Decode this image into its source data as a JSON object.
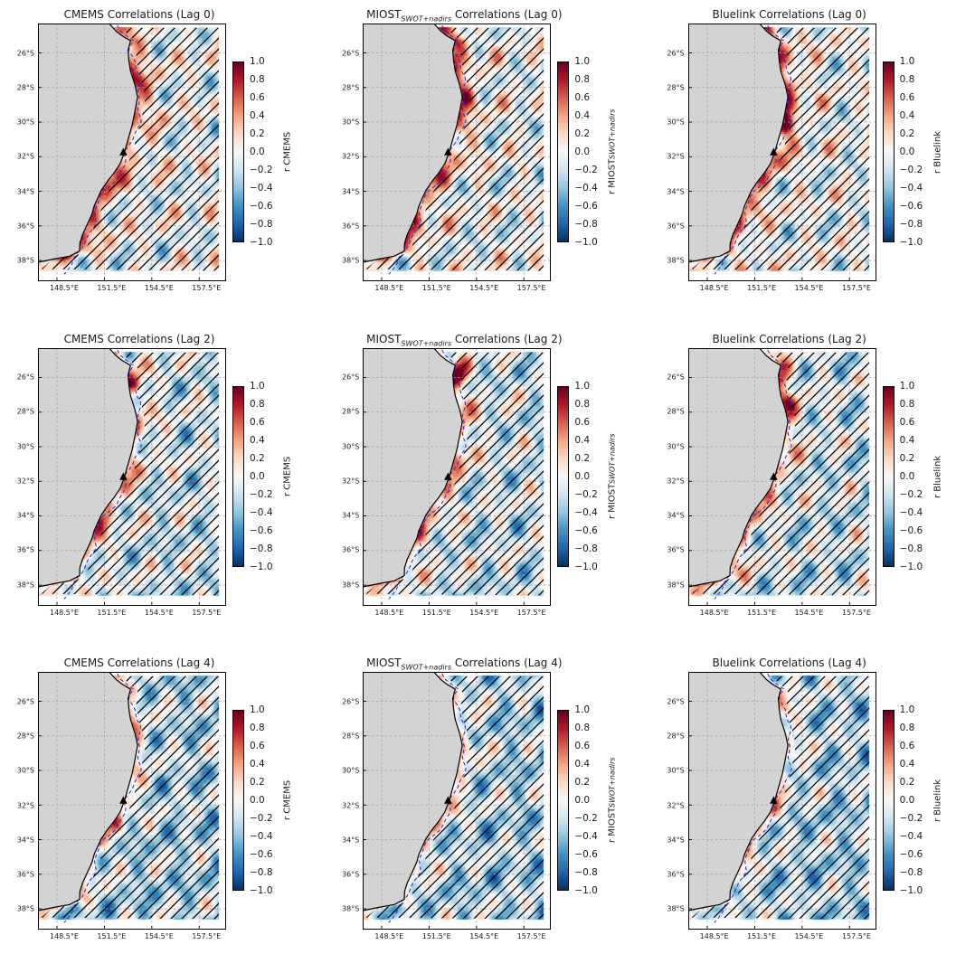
{
  "chart_data": {
    "type": "heatmap",
    "layout": "3x3 grid of geographic correlation maps; columns are products, rows are lags",
    "region": "East Australian coast / Tasman Sea",
    "column_products": [
      "CMEMS",
      "MIOST_SWOT+nadirs",
      "Bluelink"
    ],
    "row_lags": [
      0,
      2,
      4
    ],
    "lon_axis": {
      "range_deg_e": [
        147.3,
        159.2
      ],
      "tick_values": [
        148.5,
        151.5,
        154.5,
        157.5
      ],
      "tick_labels": [
        "148.5°E",
        "151.5°E",
        "154.5°E",
        "157.5°E"
      ]
    },
    "lat_axis": {
      "range_deg_s": [
        24.3,
        39.2
      ],
      "tick_values": [
        26,
        28,
        30,
        32,
        34,
        36,
        38
      ],
      "tick_labels": [
        "26°S",
        "28°S",
        "30°S",
        "32°S",
        "34°S",
        "36°S",
        "38°S"
      ]
    },
    "colorbar": {
      "vmin": -1.0,
      "vmax": 1.0,
      "tick_values": [
        1.0,
        0.8,
        0.6,
        0.4,
        0.2,
        0.0,
        -0.2,
        -0.4,
        -0.6,
        -0.8,
        -1.0
      ],
      "tick_labels": [
        "1.0",
        "0.8",
        "0.6",
        "0.4",
        "0.2",
        "0.0",
        "−0.2",
        "−0.4",
        "−0.6",
        "−0.8",
        "−1.0"
      ]
    },
    "colormap": {
      "name": "RdBu_r",
      "anchors": [
        {
          "value": -1.0,
          "color": "#053061"
        },
        {
          "value": -0.8,
          "color": "#2166ac"
        },
        {
          "value": -0.6,
          "color": "#4393c3"
        },
        {
          "value": -0.4,
          "color": "#92c5de"
        },
        {
          "value": -0.2,
          "color": "#d1e5f0"
        },
        {
          "value": 0.0,
          "color": "#f7f7f7"
        },
        {
          "value": 0.2,
          "color": "#fddbc7"
        },
        {
          "value": 0.4,
          "color": "#f4a582"
        },
        {
          "value": 0.6,
          "color": "#d6604d"
        },
        {
          "value": 0.8,
          "color": "#b2182b"
        },
        {
          "value": 1.0,
          "color": "#67001f"
        }
      ]
    },
    "marker": {
      "shape": "filled black triangle",
      "lon_deg_e": 152.7,
      "lat_deg_s": 31.75,
      "color": "#000000"
    },
    "overlays": {
      "hatching": "black diagonal hatching over most of the offshore domain; unhatched band along the coast",
      "dashed_line_color": "#2626cc",
      "land_color": "#d3d3d3",
      "coastline_color": "#000000",
      "gridlines": "dashed gray at tick longitudes and latitudes"
    },
    "panels": [
      {
        "row": 0,
        "col": 0,
        "product": "CMEMS",
        "lag": 0,
        "title_prefix": "CMEMS",
        "title_sub": "",
        "title_suffix": " Correlations (Lag 0)",
        "cbar_prefix": "r CMEMS",
        "cbar_sub": "",
        "pattern_summary": "Positive band (r ~ 0.2-0.8) along the coast; alternating +/-0.2-0.5 patches offshore, mostly hatched"
      },
      {
        "row": 0,
        "col": 1,
        "product": "MIOST_SWOT+nadirs",
        "lag": 0,
        "title_prefix": "MIOST",
        "title_sub": "SWOT+nadirs",
        "title_suffix": " Correlations (Lag 0)",
        "cbar_prefix": "r MIOST",
        "cbar_sub": "SWOT+nadirs",
        "pattern_summary": "Coastal positive band (r ~ 0.3-0.8); mixed weak positive and negative patches offshore"
      },
      {
        "row": 0,
        "col": 2,
        "product": "Bluelink",
        "lag": 0,
        "title_prefix": "Bluelink",
        "title_sub": "",
        "title_suffix": " Correlations (Lag 0)",
        "cbar_prefix": "r Bluelink",
        "cbar_sub": "",
        "pattern_summary": "Strongest coastal positives (r up to ~0.9) near 28-32S; mixed patches offshore"
      },
      {
        "row": 1,
        "col": 0,
        "product": "CMEMS",
        "lag": 2,
        "title_prefix": "CMEMS",
        "title_sub": "",
        "title_suffix": " Correlations (Lag 2)",
        "cbar_prefix": "r CMEMS",
        "cbar_sub": "",
        "pattern_summary": "Coastal positives persist (~0.2-0.7); more widespread weak negatives offshore"
      },
      {
        "row": 1,
        "col": 1,
        "product": "MIOST_SWOT+nadirs",
        "lag": 2,
        "title_prefix": "MIOST",
        "title_sub": "SWOT+nadirs",
        "title_suffix": " Correlations (Lag 2)",
        "cbar_prefix": "r MIOST",
        "cbar_sub": "SWOT+nadirs",
        "pattern_summary": "Intense positive core (r ~ 0.9) near 25-26S coast; positive shelf band; mixed offshore"
      },
      {
        "row": 1,
        "col": 2,
        "product": "Bluelink",
        "lag": 2,
        "title_prefix": "Bluelink",
        "title_sub": "",
        "title_suffix": " Correlations (Lag 2)",
        "cbar_prefix": "r Bluelink",
        "cbar_sub": "",
        "pattern_summary": "Positive nearshore band; broader weak negative (-0.2 to -0.5) areas offshore"
      },
      {
        "row": 2,
        "col": 0,
        "product": "CMEMS",
        "lag": 4,
        "title_prefix": "CMEMS",
        "title_sub": "",
        "title_suffix": " Correlations (Lag 4)",
        "cbar_prefix": "r CMEMS",
        "cbar_sub": "",
        "pattern_summary": "Weakened coastal positives; broad weak negatives (-0.2 to -0.6) offshore"
      },
      {
        "row": 2,
        "col": 1,
        "product": "MIOST_SWOT+nadirs",
        "lag": 4,
        "title_prefix": "MIOST",
        "title_sub": "SWOT+nadirs",
        "title_suffix": " Correlations (Lag 4)",
        "cbar_prefix": "r MIOST",
        "cbar_sub": "SWOT+nadirs",
        "pattern_summary": "Patchy coastal positives; blue-dominated offshore field (-0.2 to -0.5)"
      },
      {
        "row": 2,
        "col": 2,
        "product": "Bluelink",
        "lag": 4,
        "title_prefix": "Bluelink",
        "title_sub": "",
        "title_suffix": " Correlations (Lag 4)",
        "cbar_prefix": "r Bluelink",
        "cbar_sub": "",
        "pattern_summary": "Mostly weak negatives offshore with scattered positive patches; faint coastal positives"
      }
    ]
  }
}
